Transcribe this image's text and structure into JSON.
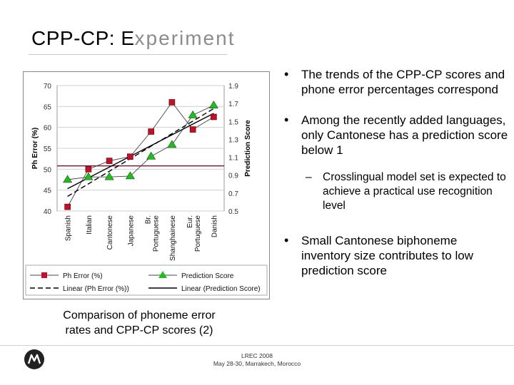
{
  "title": {
    "main": "CPP-CP: ",
    "accent": "E",
    "rest": "xperiment"
  },
  "bullets": [
    {
      "text": "The trends of the CPP-CP scores and phone error percentages correspond"
    },
    {
      "text": "Among the recently added languages, only Cantonese has a prediction score below 1"
    },
    {
      "text": "Small Cantonese biphoneme inventory size contributes to low prediction score"
    }
  ],
  "sub_bullet": {
    "text": "Crosslingual model set is expected to achieve a practical use recognition level"
  },
  "caption": {
    "line1": "Comparison of phoneme error",
    "line2": "rates and CPP-CP scores (2)"
  },
  "footer": {
    "line1": "LREC 2008",
    "line2": "May 28-30, Marrakech, Morocco"
  },
  "chart_data": {
    "type": "line",
    "categories": [
      "Spanish",
      "Italian",
      "Cantonese",
      "Japanese",
      "Br. Portuguese",
      "Shanghainese",
      "Eur. Portuguese",
      "Danish"
    ],
    "series": [
      {
        "name": "Ph Error (%)",
        "axis": "left",
        "marker": "square",
        "color": "#c0102a",
        "values": [
          41,
          50,
          52,
          53,
          59,
          66,
          59.5,
          62.5
        ]
      },
      {
        "name": "Prediction Score",
        "axis": "right",
        "marker": "triangle",
        "color": "#22bb22",
        "values": [
          0.85,
          0.88,
          0.88,
          0.89,
          1.11,
          1.24,
          1.57,
          1.68
        ]
      },
      {
        "name": "Linear (Ph Error (%))",
        "axis": "left",
        "style": "dashed",
        "color": "#000000",
        "values": [
          43.5,
          46.5,
          49.5,
          52.5,
          55.5,
          58.5,
          61.5,
          64.5
        ]
      },
      {
        "name": "Linear (Prediction Score)",
        "axis": "right",
        "style": "solid",
        "color": "#000000",
        "values": [
          0.75,
          0.87,
          0.99,
          1.11,
          1.23,
          1.35,
          1.47,
          1.59
        ]
      }
    ],
    "reference_line": {
      "axis": "left",
      "value": 50.8,
      "color": "#7a1f3d"
    },
    "ylabel_left": "Ph Error (%)",
    "ylabel_right": "Prediction Score",
    "y_left": {
      "min": 40,
      "max": 70,
      "ticks": [
        "40",
        "45",
        "50",
        "55",
        "60",
        "65",
        "70"
      ]
    },
    "y_right": {
      "min": 0.5,
      "max": 1.9,
      "ticks": [
        "0.5",
        "0.7",
        "0.9",
        "1.1",
        "1.3",
        "1.5",
        "1.7",
        "1.9"
      ]
    },
    "grid": "horizontal",
    "legend": [
      "Ph Error (%)",
      "Prediction Score",
      "Linear (Ph Error (%))",
      "Linear (Prediction Score)"
    ]
  }
}
